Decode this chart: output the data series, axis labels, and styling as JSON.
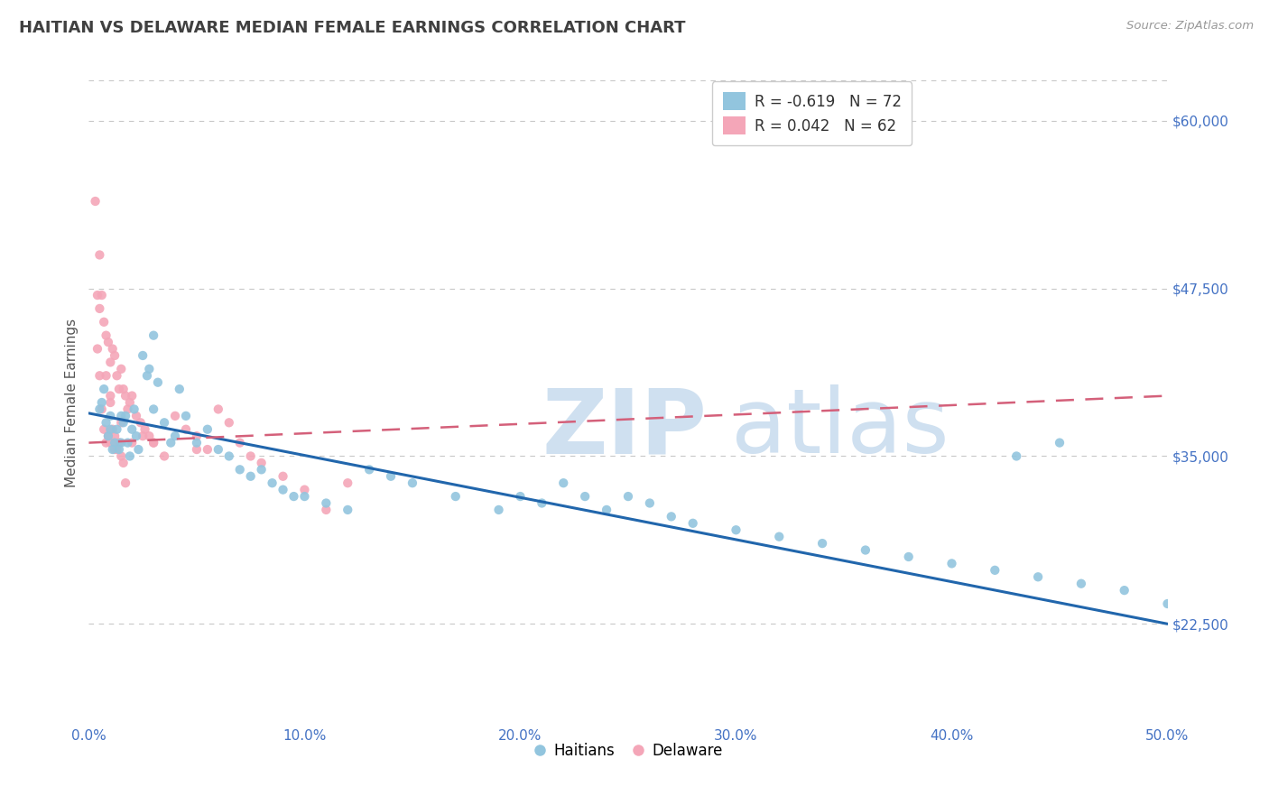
{
  "title": "HAITIAN VS DELAWARE MEDIAN FEMALE EARNINGS CORRELATION CHART",
  "source_text": "Source: ZipAtlas.com",
  "ylabel": "Median Female Earnings",
  "xlim": [
    0.0,
    50.0
  ],
  "ylim": [
    15000,
    63000
  ],
  "yticks": [
    22500,
    35000,
    47500,
    60000
  ],
  "ytick_labels": [
    "$22,500",
    "$35,000",
    "$47,500",
    "$60,000"
  ],
  "xticks": [
    0.0,
    10.0,
    20.0,
    30.0,
    40.0,
    50.0
  ],
  "xtick_labels": [
    "0.0%",
    "10.0%",
    "20.0%",
    "30.0%",
    "40.0%",
    "50.0%"
  ],
  "blue_R": -0.619,
  "blue_N": 72,
  "pink_R": 0.042,
  "pink_N": 62,
  "blue_color": "#92c5de",
  "pink_color": "#f4a6b8",
  "blue_line_color": "#2166ac",
  "pink_line_color": "#d4607a",
  "title_color": "#404040",
  "axis_label_color": "#555555",
  "tick_color": "#4472c4",
  "grid_color": "#c8c8c8",
  "watermark_color": "#cfe0f0",
  "background_color": "#ffffff",
  "legend_label1": "Haitians",
  "legend_label2": "Delaware",
  "blue_trend_x0": 0.0,
  "blue_trend_y0": 38200,
  "blue_trend_x1": 50.0,
  "blue_trend_y1": 22500,
  "pink_trend_x0": 0.0,
  "pink_trend_y0": 36000,
  "pink_trend_x1": 50.0,
  "pink_trend_y1": 39500,
  "blue_scatter_x": [
    0.5,
    0.6,
    0.7,
    0.8,
    0.9,
    1.0,
    1.0,
    1.1,
    1.2,
    1.3,
    1.4,
    1.5,
    1.5,
    1.6,
    1.7,
    1.8,
    1.9,
    2.0,
    2.1,
    2.2,
    2.3,
    2.5,
    2.7,
    3.0,
    3.2,
    3.5,
    3.8,
    4.0,
    4.5,
    5.0,
    5.5,
    6.0,
    6.5,
    7.0,
    7.5,
    8.0,
    8.5,
    9.0,
    9.5,
    10.0,
    11.0,
    12.0,
    13.0,
    14.0,
    15.0,
    17.0,
    19.0,
    20.0,
    21.0,
    22.0,
    23.0,
    24.0,
    25.0,
    26.0,
    27.0,
    28.0,
    30.0,
    32.0,
    34.0,
    36.0,
    38.0,
    40.0,
    42.0,
    43.0,
    44.0,
    45.0,
    46.0,
    48.0,
    50.0,
    3.0,
    4.2,
    2.8
  ],
  "blue_scatter_y": [
    38500,
    39000,
    40000,
    37500,
    36500,
    38000,
    37000,
    35500,
    36000,
    37000,
    35500,
    36000,
    38000,
    37500,
    38000,
    36000,
    35000,
    37000,
    38500,
    36500,
    35500,
    42500,
    41000,
    38500,
    40500,
    37500,
    36000,
    36500,
    38000,
    36000,
    37000,
    35500,
    35000,
    34000,
    33500,
    34000,
    33000,
    32500,
    32000,
    32000,
    31500,
    31000,
    34000,
    33500,
    33000,
    32000,
    31000,
    32000,
    31500,
    33000,
    32000,
    31000,
    32000,
    31500,
    30500,
    30000,
    29500,
    29000,
    28500,
    28000,
    27500,
    27000,
    26500,
    35000,
    26000,
    36000,
    25500,
    25000,
    24000,
    44000,
    40000,
    41500
  ],
  "pink_scatter_x": [
    0.3,
    0.5,
    0.6,
    0.7,
    0.8,
    0.9,
    1.0,
    1.1,
    1.2,
    1.3,
    1.4,
    1.5,
    1.6,
    1.7,
    1.8,
    1.9,
    2.0,
    2.2,
    2.4,
    2.6,
    2.8,
    3.0,
    3.5,
    4.0,
    4.5,
    5.0,
    5.5,
    6.0,
    6.5,
    7.0,
    7.5,
    8.0,
    9.0,
    10.0,
    11.0,
    12.0,
    0.4,
    0.5,
    0.8,
    1.0,
    1.5,
    2.0,
    1.0,
    1.1,
    1.2,
    1.3,
    1.4,
    1.5,
    1.6,
    1.7,
    2.5,
    3.0,
    5.0,
    0.4,
    0.5,
    1.0,
    0.6,
    0.7,
    0.8,
    0.9,
    1.2,
    1.4
  ],
  "pink_scatter_y": [
    54000,
    50000,
    47000,
    45000,
    44000,
    43500,
    42000,
    43000,
    42500,
    41000,
    40000,
    41500,
    40000,
    39500,
    38500,
    39000,
    39500,
    38000,
    37500,
    37000,
    36500,
    36000,
    35000,
    38000,
    37000,
    36500,
    35500,
    38500,
    37500,
    36000,
    35000,
    34500,
    33500,
    32500,
    31000,
    33000,
    47000,
    46000,
    41000,
    39000,
    37500,
    36000,
    36000,
    37000,
    36500,
    35500,
    36000,
    35000,
    34500,
    33000,
    36500,
    36000,
    35500,
    43000,
    41000,
    39500,
    38500,
    37000,
    36000,
    36500,
    35500,
    36000
  ]
}
